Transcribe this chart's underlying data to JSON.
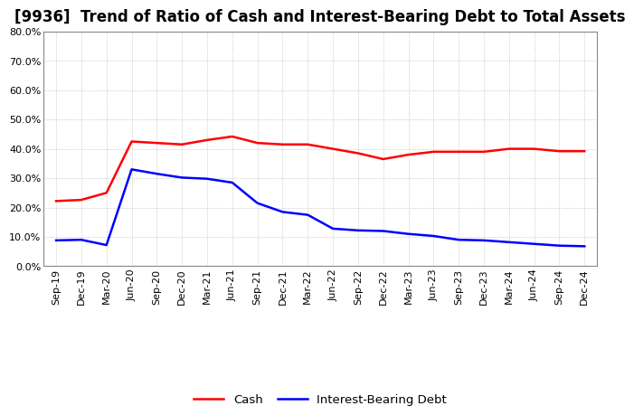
{
  "title": "[9936]  Trend of Ratio of Cash and Interest-Bearing Debt to Total Assets",
  "x_labels": [
    "Sep-19",
    "Dec-19",
    "Mar-20",
    "Jun-20",
    "Sep-20",
    "Dec-20",
    "Mar-21",
    "Jun-21",
    "Sep-21",
    "Dec-21",
    "Mar-22",
    "Jun-22",
    "Sep-22",
    "Dec-22",
    "Mar-23",
    "Jun-23",
    "Sep-23",
    "Dec-23",
    "Mar-24",
    "Jun-24",
    "Sep-24",
    "Dec-24"
  ],
  "cash": [
    0.222,
    0.226,
    0.25,
    0.425,
    0.42,
    0.415,
    0.43,
    0.442,
    0.42,
    0.415,
    0.415,
    0.4,
    0.385,
    0.365,
    0.38,
    0.39,
    0.39,
    0.39,
    0.4,
    0.4,
    0.392,
    0.392
  ],
  "ibd": [
    0.088,
    0.09,
    0.072,
    0.33,
    0.315,
    0.302,
    0.298,
    0.285,
    0.215,
    0.185,
    0.175,
    0.128,
    0.122,
    0.12,
    0.11,
    0.103,
    0.09,
    0.088,
    0.082,
    0.076,
    0.07,
    0.068
  ],
  "cash_color": "#ff0000",
  "ibd_color": "#0000ff",
  "ylim": [
    0.0,
    0.8
  ],
  "yticks": [
    0.0,
    0.1,
    0.2,
    0.3,
    0.4,
    0.5,
    0.6,
    0.7,
    0.8
  ],
  "bg_color": "#ffffff",
  "plot_bg_color": "#ffffff",
  "grid_color": "#bbbbbb",
  "title_fontsize": 12,
  "legend_fontsize": 9.5,
  "tick_fontsize": 8
}
